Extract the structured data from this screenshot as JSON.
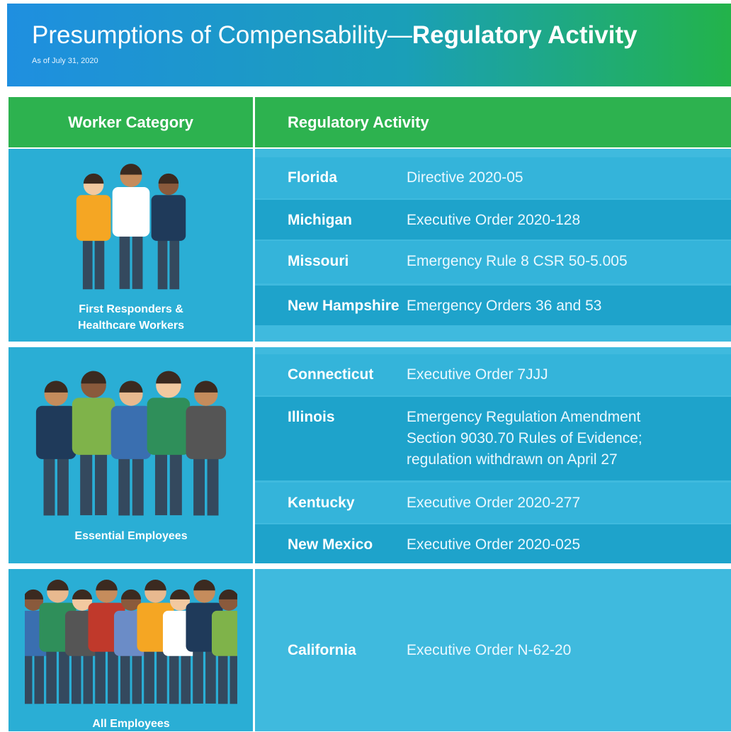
{
  "header": {
    "title_regular": "Presumptions of Compensability—",
    "title_bold": "Regulatory Activity",
    "subtitle": "As of July 31, 2020"
  },
  "table": {
    "columns": [
      "Worker Category",
      "Regulatory Activity"
    ],
    "groups": [
      {
        "category": "First Responders & Healthcare Workers",
        "rows": [
          {
            "state": "Florida",
            "activity": "Directive 2020-05"
          },
          {
            "state": "Michigan",
            "activity": "Executive Order 2020-128"
          },
          {
            "state": "Missouri",
            "activity": "Emergency Rule 8 CSR 50-5.005"
          },
          {
            "state": "New Hampshire",
            "activity": "Emergency Orders 36 and 53"
          }
        ]
      },
      {
        "category": "Essential Employees",
        "rows": [
          {
            "state": "Connecticut",
            "activity": "Executive Order 7JJJ"
          },
          {
            "state": "Illinois",
            "activity": "Emergency Regulation Amendment Section 9030.70 Rules of Evidence; regulation withdrawn on April 27"
          },
          {
            "state": "Kentucky",
            "activity": "Executive Order 2020-277"
          },
          {
            "state": "New Mexico",
            "activity": "Executive Order 2020-025"
          }
        ]
      },
      {
        "category": "All Employees",
        "rows": [
          {
            "state": "California",
            "activity": "Executive Order N-62-20"
          }
        ]
      }
    ]
  }
}
